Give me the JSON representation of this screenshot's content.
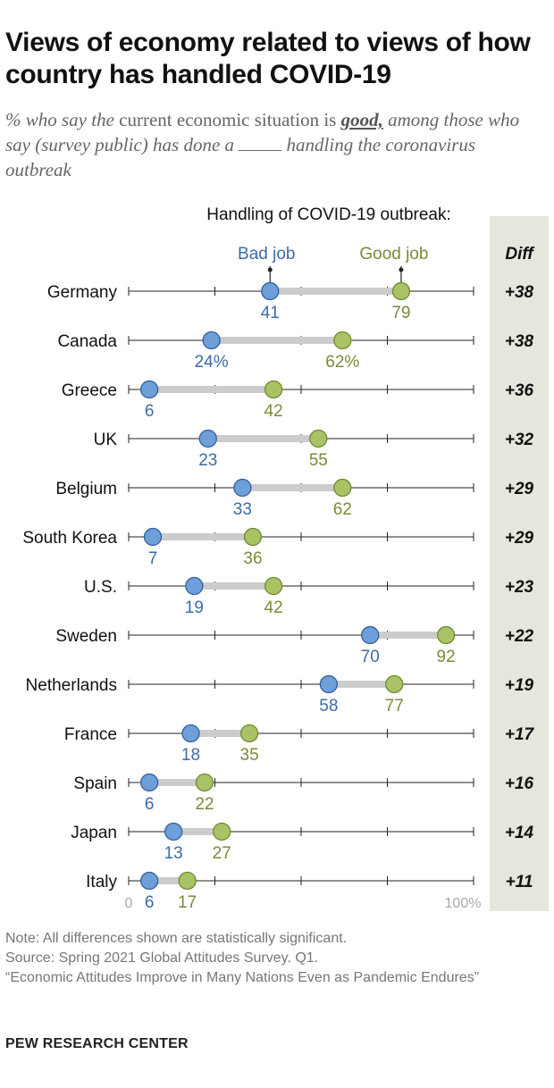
{
  "title": "Views of economy related to views of how country has handled COVID-19",
  "subtitle": {
    "part1": "% who say the",
    "part2": "current economic situation is",
    "part3": "good,",
    "part4": "among those who say (survey public) has done a",
    "part5": "handling the coronavirus outbreak"
  },
  "colors": {
    "bad": "#6f9fd8",
    "bad_stroke": "#2f5e9e",
    "bad_text": "#3b6aa8",
    "good": "#a9c266",
    "good_stroke": "#6f8a2e",
    "good_text": "#7a8a3a",
    "diff_bg": "#e6e6dc",
    "connector": "#cccccc"
  },
  "chart_data": {
    "type": "dot-plot",
    "header": "Handling of COVID-19 outbreak:",
    "legend": {
      "bad": "Bad job",
      "good": "Good job"
    },
    "diff_header": "Diff",
    "axis": {
      "min": 0,
      "max": 100,
      "min_label": "0",
      "max_label": "100%",
      "gridlines": [
        0,
        25,
        50,
        75,
        100
      ]
    },
    "categories": [
      "Germany",
      "Canada",
      "Greece",
      "UK",
      "Belgium",
      "South Korea",
      "U.S.",
      "Sweden",
      "Netherlands",
      "France",
      "Spain",
      "Japan",
      "Italy"
    ],
    "series": [
      {
        "name": "Bad job",
        "values": [
          41,
          24,
          6,
          23,
          33,
          7,
          19,
          70,
          58,
          18,
          6,
          13,
          6
        ]
      },
      {
        "name": "Good job",
        "values": [
          79,
          62,
          42,
          55,
          62,
          36,
          42,
          92,
          77,
          35,
          22,
          27,
          17
        ]
      }
    ],
    "bad_labels": [
      "41",
      "24%",
      "6",
      "23",
      "33",
      "7",
      "19",
      "70",
      "58",
      "18",
      "6",
      "13",
      "6"
    ],
    "good_labels": [
      "79",
      "62%",
      "42",
      "55",
      "62",
      "36",
      "42",
      "92",
      "77",
      "35",
      "22",
      "27",
      "17"
    ],
    "diff": [
      "+38",
      "+38",
      "+36",
      "+32",
      "+29",
      "+29",
      "+23",
      "+22",
      "+19",
      "+17",
      "+16",
      "+14",
      "+11"
    ]
  },
  "notes": {
    "note": "Note: All differences shown are statistically significant.",
    "source": "Source: Spring 2021 Global Attitudes Survey. Q1.",
    "report": "“Economic Attitudes Improve in Many Nations Even as Pandemic Endures”"
  },
  "footer": "PEW RESEARCH CENTER"
}
